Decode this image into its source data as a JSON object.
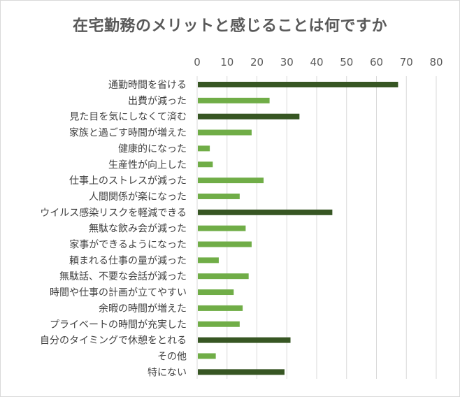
{
  "chart_data": {
    "type": "bar",
    "orientation": "horizontal",
    "title": "在宅勤務のメリットと感じることは何ですか",
    "xlim": [
      0,
      80
    ],
    "ticks": [
      0,
      10,
      20,
      30,
      40,
      50,
      60,
      70,
      80
    ],
    "grid": true,
    "categories": [
      "通勤時間を省ける",
      "出費が減った",
      "見た目を気にしなくて済む",
      "家族と過ごす時間が増えた",
      "健康的になった",
      "生産性が向上した",
      "仕事上のストレスが減った",
      "人間関係が楽になった",
      "ウイルス感染リスクを軽減できる",
      "無駄な飲み会が減った",
      "家事ができるようになった",
      "頼まれる仕事の量が減った",
      "無駄話、不要な会話が減った",
      "時間や仕事の計画が立てやすい",
      "余暇の時間が増えた",
      "プライベートの時間が充実した",
      "自分のタイミングで休憩をとれる",
      "その他",
      "特にない"
    ],
    "values": [
      67,
      24,
      34,
      18,
      4,
      5,
      22,
      14,
      45,
      16,
      18,
      7,
      17,
      12,
      15,
      14,
      31,
      6,
      29
    ],
    "highlight": [
      true,
      false,
      true,
      false,
      false,
      false,
      false,
      false,
      true,
      false,
      false,
      false,
      false,
      false,
      false,
      false,
      true,
      false,
      true
    ],
    "colors": {
      "highlight": "#375623",
      "normal": "#70ad47",
      "grid": "#d9d9d9"
    }
  }
}
